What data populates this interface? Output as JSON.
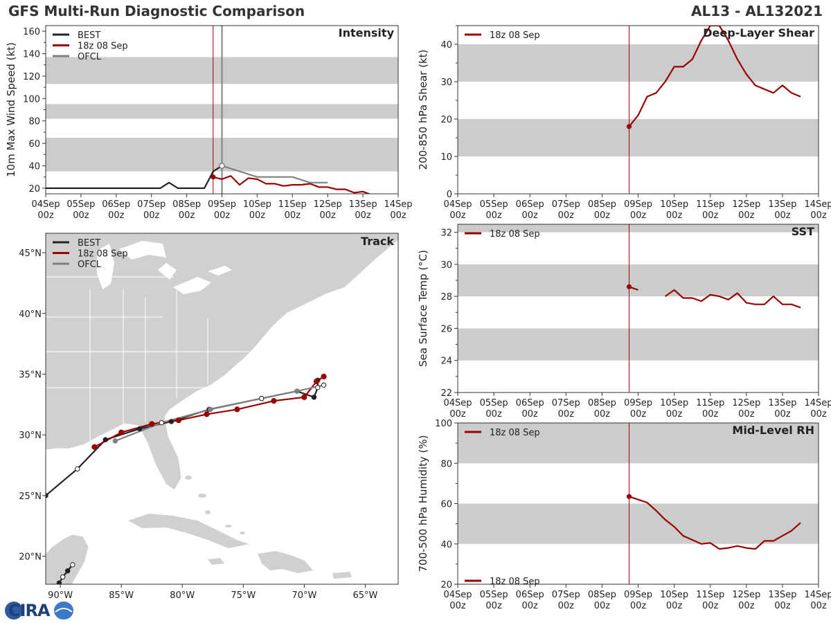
{
  "header": {
    "title": "GFS Multi-Run Diagnostic Comparison",
    "storm": "AL13 - AL132021"
  },
  "logo": {
    "text": "CIRA"
  },
  "colors": {
    "best": "#222222",
    "run": "#990000",
    "ofcl": "#808080",
    "band": "#cccccc",
    "land": "#d0d0d0",
    "border": "#ffffff"
  },
  "time_axis": {
    "ticks": [
      0,
      1,
      2,
      3,
      4,
      5,
      6,
      7,
      8,
      9,
      10
    ],
    "labels": [
      [
        "04Sep",
        "00z"
      ],
      [
        "05Sep",
        "00z"
      ],
      [
        "06Sep",
        "00z"
      ],
      [
        "07Sep",
        "00z"
      ],
      [
        "08Sep",
        "00z"
      ],
      [
        "09Sep",
        "00z"
      ],
      [
        "10Sep",
        "00z"
      ],
      [
        "11Sep",
        "00z"
      ],
      [
        "12Sep",
        "00z"
      ],
      [
        "13Sep",
        "00z"
      ],
      [
        "14Sep",
        "00z"
      ]
    ],
    "init_time": 4.75,
    "ofcl_time": 5.0
  },
  "chart_data": [
    {
      "id": "intensity",
      "type": "line",
      "title": "Intensity",
      "xlabel": "",
      "ylabel": "10m Max Wind Speed (kt)",
      "xlim": [
        0,
        10
      ],
      "ylim": [
        15,
        165
      ],
      "yticks": [
        20,
        40,
        60,
        80,
        100,
        120,
        140,
        160
      ],
      "bands": [
        [
          35,
          65
        ],
        [
          82,
          95
        ],
        [
          113,
          137
        ]
      ],
      "legend": [
        "BEST",
        "18z 08 Sep",
        "OFCL"
      ],
      "series": [
        {
          "name": "BEST",
          "role": "best",
          "x": [
            0,
            0.25,
            0.5,
            0.75,
            1,
            1.25,
            1.5,
            1.75,
            2,
            2.25,
            2.5,
            2.75,
            3,
            3.25,
            3.5,
            3.75,
            4,
            4.25,
            4.5,
            4.75,
            5
          ],
          "y": [
            20,
            20,
            20,
            20,
            20,
            20,
            20,
            20,
            20,
            20,
            20,
            20,
            20,
            20,
            25,
            20,
            20,
            20,
            20,
            35,
            40
          ]
        },
        {
          "name": "18z 08 Sep",
          "role": "run",
          "x": [
            4.75,
            5,
            5.25,
            5.5,
            5.75,
            6,
            6.25,
            6.5,
            6.75,
            7,
            7.25,
            7.5,
            7.75,
            8,
            8.25,
            8.5,
            8.75,
            9,
            9.25
          ],
          "y": [
            30,
            28,
            31,
            23,
            29,
            28,
            24,
            24,
            22,
            23,
            23,
            24,
            21,
            21,
            19,
            19,
            16,
            17,
            14
          ]
        },
        {
          "name": "OFCL",
          "role": "ofcl",
          "x": [
            5,
            5.5,
            6,
            6.5,
            7,
            7.5,
            8
          ],
          "y": [
            40,
            35,
            30,
            30,
            30,
            25,
            25
          ]
        }
      ]
    },
    {
      "id": "shear",
      "type": "line",
      "title": "Deep-Layer Shear",
      "xlabel": "",
      "ylabel": "200-850 hPa Shear (kt)",
      "xlim": [
        0,
        10
      ],
      "ylim": [
        0,
        45
      ],
      "yticks": [
        0,
        10,
        20,
        30,
        40
      ],
      "bands": [
        [
          10,
          20
        ],
        [
          30,
          40
        ]
      ],
      "legend": [
        "18z 08 Sep"
      ],
      "series": [
        {
          "name": "18z 08 Sep",
          "role": "run",
          "x": [
            4.75,
            5,
            5.25,
            5.5,
            5.75,
            6,
            6.25,
            6.5,
            6.75,
            7,
            7.25,
            7.5,
            7.75,
            8,
            8.25,
            8.5,
            8.75,
            9,
            9.25,
            9.5
          ],
          "y": [
            18,
            21,
            26,
            27,
            30,
            34,
            34,
            36,
            41,
            45,
            45,
            41,
            36,
            32,
            29,
            28,
            27,
            29,
            27,
            26
          ]
        }
      ]
    },
    {
      "id": "sst",
      "type": "line",
      "title": "SST",
      "xlabel": "",
      "ylabel": "Sea Surface Temp (°C)",
      "xlim": [
        0,
        10
      ],
      "ylim": [
        22,
        32.5
      ],
      "yticks": [
        22,
        24,
        26,
        28,
        30,
        32
      ],
      "bands": [
        [
          24,
          26
        ],
        [
          28,
          30
        ],
        [
          32,
          32.5
        ]
      ],
      "legend": [
        "18z 08 Sep"
      ],
      "series": [
        {
          "name": "18z 08 Sep",
          "role": "run",
          "x": [
            4.75,
            5
          ],
          "y": [
            28.6,
            28.4
          ]
        },
        {
          "name": "18z 08 Sep",
          "role": "run",
          "x": [
            5.75,
            6,
            6.25,
            6.5,
            6.75,
            7,
            7.25,
            7.5,
            7.75,
            8,
            8.25,
            8.5,
            8.75,
            9,
            9.25,
            9.5
          ],
          "y": [
            28,
            28.4,
            27.9,
            27.9,
            27.7,
            28.1,
            28,
            27.8,
            28.2,
            27.6,
            27.5,
            27.5,
            28,
            27.5,
            27.5,
            27.3
          ]
        }
      ]
    },
    {
      "id": "rh",
      "type": "line",
      "title": "Mid-Level RH",
      "xlabel": "",
      "ylabel": "700-500 hPa Humidity (%)",
      "xlim": [
        0,
        10
      ],
      "ylim": [
        20,
        100
      ],
      "yticks": [
        20,
        40,
        60,
        80,
        100
      ],
      "bands": [
        [
          40,
          60
        ],
        [
          80,
          100
        ]
      ],
      "legend": [
        "18z 08 Sep"
      ],
      "series": [
        {
          "name": "18z 08 Sep",
          "role": "run",
          "x": [
            4.75,
            5,
            5.25,
            5.5,
            5.75,
            6,
            6.25,
            6.5,
            6.75,
            7,
            7.25,
            7.5,
            7.75,
            8,
            8.25,
            8.5,
            8.75,
            9,
            9.25,
            9.5
          ],
          "y": [
            63.5,
            62,
            60.5,
            56.5,
            52,
            48.5,
            44,
            42,
            40,
            40.5,
            37.5,
            38,
            39,
            38,
            37.5,
            41.5,
            41.5,
            44,
            46.5,
            50.5
          ]
        }
      ]
    },
    {
      "id": "track",
      "type": "scatter",
      "title": "Track",
      "xlabel": "",
      "ylabel": "",
      "xlim": [
        -91.2,
        -62.3
      ],
      "ylim": [
        17.7,
        46.6
      ],
      "xticks": [
        -90,
        -85,
        -80,
        -75,
        -70,
        -65
      ],
      "xticklabels": [
        "90°W",
        "85°W",
        "80°W",
        "75°W",
        "70°W",
        "65°W"
      ],
      "yticks": [
        20,
        25,
        30,
        35,
        40,
        45
      ],
      "yticklabels": [
        "20°N",
        "25°N",
        "30°N",
        "35°N",
        "40°N",
        "45°N"
      ],
      "legend": [
        "BEST",
        "18z 08 Sep",
        "OFCL"
      ],
      "series": [
        {
          "name": "BEST",
          "role": "best",
          "lon": [
            -90.1,
            -89.8,
            -89.4,
            -89.0,
            -91.2,
            -88.6,
            -86.3,
            -83.5,
            -80.9,
            -77.8,
            -73.5,
            -70.6,
            -69.2,
            -68.9,
            -68.9
          ],
          "lat": [
            17.8,
            18.3,
            18.8,
            19.3,
            25.0,
            27.2,
            29.6,
            30.5,
            31.1,
            32.1,
            33.0,
            33.6,
            33.1,
            33.9,
            34.5
          ],
          "open": [
            false,
            true,
            false,
            true,
            false,
            true,
            false,
            false,
            false,
            false,
            true,
            false,
            false,
            true,
            false
          ]
        },
        {
          "name": "18z 08 Sep",
          "role": "run",
          "lon": [
            -87.2,
            -85.0,
            -82.5,
            -80.3,
            -78.0,
            -75.5,
            -72.5,
            -70.0,
            -69.0,
            -68.4
          ],
          "lat": [
            29.0,
            30.2,
            30.9,
            31.2,
            31.7,
            32.1,
            32.8,
            33.1,
            34.4,
            34.8
          ],
          "open": [
            false,
            false,
            false,
            false,
            false,
            false,
            false,
            false,
            false,
            false
          ]
        },
        {
          "name": "OFCL",
          "role": "ofcl",
          "lon": [
            -85.5,
            -81.7,
            -77.7,
            -73.5,
            -70.6,
            -68.4
          ],
          "lat": [
            29.5,
            31.0,
            32.1,
            33.0,
            33.6,
            34.1
          ],
          "open": [
            false,
            true,
            false,
            true,
            false,
            true
          ]
        }
      ]
    }
  ]
}
